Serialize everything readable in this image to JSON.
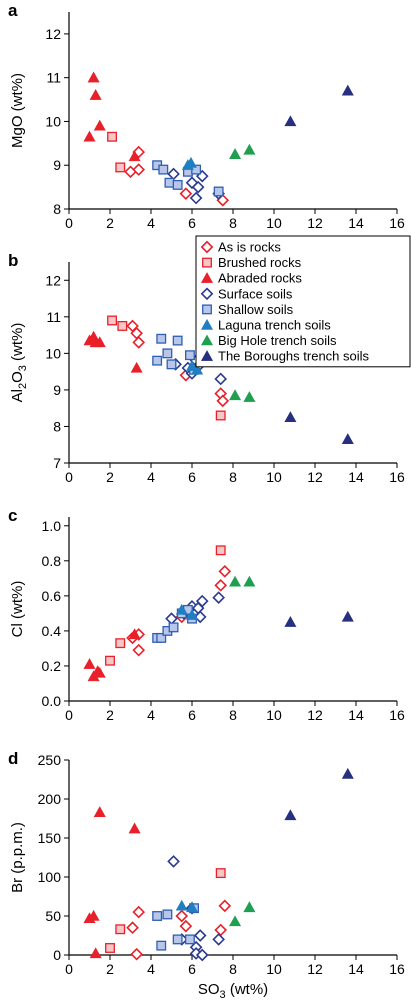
{
  "legend": {
    "placement": "between panels a and b, right side",
    "entries": [
      {
        "name": "As is rocks",
        "marker": "diamond-open",
        "color": "#e8202a"
      },
      {
        "name": "Brushed rocks",
        "marker": "square-light",
        "color": "#e8202a"
      },
      {
        "name": "Abraded rocks",
        "marker": "triangle-filled",
        "color": "#e8202a"
      },
      {
        "name": "Surface soils",
        "marker": "diamond-open",
        "color": "#2a3a8f"
      },
      {
        "name": "Shallow soils",
        "marker": "square-light",
        "color": "#2f5fb0"
      },
      {
        "name": "Laguna trench soils",
        "marker": "triangle-filled",
        "color": "#1f7fc2"
      },
      {
        "name": "Big Hole trench soils",
        "marker": "triangle-filled",
        "color": "#1ea050"
      },
      {
        "name": "The Boroughs trench soils",
        "marker": "triangle-filled",
        "color": "#27307f"
      }
    ]
  },
  "chart_data": [
    {
      "type": "scatter",
      "panel_label": "a",
      "xlabel": "",
      "ylabel": "MgO (wt%)",
      "xlim": [
        0,
        16
      ],
      "ylim": [
        8,
        12.5
      ],
      "xticks": [
        "0",
        "2",
        "4",
        "6",
        "8",
        "10",
        "12",
        "14",
        "16"
      ],
      "yticks": [
        {
          "value": 8,
          "label": "8"
        },
        {
          "value": 9,
          "label": "9"
        },
        {
          "value": 10,
          "label": "10"
        },
        {
          "value": 11,
          "label": "11"
        },
        {
          "value": 12,
          "label": "12"
        }
      ],
      "series": [
        {
          "name": "As is rocks",
          "points": [
            [
              3.4,
              9.3
            ],
            [
              3.0,
              8.85
            ],
            [
              3.4,
              8.9
            ],
            [
              5.7,
              8.35
            ],
            [
              7.5,
              8.2
            ]
          ]
        },
        {
          "name": "Brushed rocks",
          "points": [
            [
              2.1,
              9.65
            ],
            [
              2.5,
              8.95
            ]
          ]
        },
        {
          "name": "Abraded rocks",
          "points": [
            [
              1.2,
              11.0
            ],
            [
              1.3,
              10.6
            ],
            [
              1.5,
              9.9
            ],
            [
              1.0,
              9.65
            ],
            [
              3.2,
              9.2
            ]
          ]
        },
        {
          "name": "Surface soils",
          "points": [
            [
              5.1,
              8.8
            ],
            [
              6.0,
              8.6
            ],
            [
              6.5,
              8.75
            ],
            [
              6.3,
              8.5
            ],
            [
              6.2,
              8.25
            ],
            [
              7.3,
              8.35
            ]
          ]
        },
        {
          "name": "Shallow soils",
          "points": [
            [
              4.3,
              9.0
            ],
            [
              4.6,
              8.9
            ],
            [
              4.9,
              8.6
            ],
            [
              5.3,
              8.55
            ],
            [
              5.8,
              8.85
            ],
            [
              6.2,
              8.9
            ],
            [
              7.3,
              8.4
            ]
          ]
        },
        {
          "name": "Laguna trench soils",
          "points": [
            [
              5.8,
              9.0
            ],
            [
              5.95,
              9.05
            ]
          ]
        },
        {
          "name": "Big Hole trench soils",
          "points": [
            [
              8.1,
              9.25
            ],
            [
              8.8,
              9.35
            ]
          ]
        },
        {
          "name": "The Boroughs trench soils",
          "points": [
            [
              10.8,
              10.0
            ],
            [
              13.6,
              10.7
            ]
          ]
        }
      ]
    },
    {
      "type": "scatter",
      "panel_label": "b",
      "xlabel": "",
      "ylabel": "Al2O3 (wt%)",
      "xlim": [
        0,
        16
      ],
      "ylim": [
        7,
        12.5
      ],
      "xticks": [
        "0",
        "2",
        "4",
        "6",
        "8",
        "10",
        "12",
        "14",
        "16"
      ],
      "yticks": [
        {
          "value": 7,
          "label": "7"
        },
        {
          "value": 8,
          "label": "8"
        },
        {
          "value": 9,
          "label": "9"
        },
        {
          "value": 10,
          "label": "10"
        },
        {
          "value": 11,
          "label": "11"
        },
        {
          "value": 12,
          "label": "12"
        }
      ],
      "series": [
        {
          "name": "As is rocks",
          "points": [
            [
              3.1,
              10.75
            ],
            [
              3.3,
              10.55
            ],
            [
              3.4,
              10.3
            ],
            [
              5.7,
              9.4
            ],
            [
              7.4,
              8.9
            ],
            [
              7.5,
              8.7
            ]
          ]
        },
        {
          "name": "Brushed rocks",
          "points": [
            [
              2.1,
              10.9
            ],
            [
              2.6,
              10.75
            ],
            [
              7.4,
              8.3
            ]
          ]
        },
        {
          "name": "Abraded rocks",
          "points": [
            [
              1.0,
              10.35
            ],
            [
              1.2,
              10.45
            ],
            [
              1.3,
              10.3
            ],
            [
              1.5,
              10.3
            ],
            [
              3.3,
              9.6
            ]
          ]
        },
        {
          "name": "Surface soils",
          "points": [
            [
              5.2,
              9.7
            ],
            [
              5.8,
              9.6
            ],
            [
              6.2,
              9.8
            ],
            [
              6.4,
              9.7
            ],
            [
              6.0,
              9.45
            ],
            [
              7.4,
              9.3
            ]
          ]
        },
        {
          "name": "Shallow soils",
          "points": [
            [
              4.5,
              10.4
            ],
            [
              5.3,
              10.35
            ],
            [
              4.8,
              10.0
            ],
            [
              5.9,
              9.95
            ],
            [
              4.3,
              9.8
            ],
            [
              5.0,
              9.7
            ],
            [
              6.1,
              9.55
            ]
          ]
        },
        {
          "name": "Laguna trench soils",
          "points": [
            [
              6.0,
              9.65
            ],
            [
              6.25,
              9.55
            ]
          ]
        },
        {
          "name": "Big Hole trench soils",
          "points": [
            [
              8.1,
              8.85
            ],
            [
              8.8,
              8.8
            ]
          ]
        },
        {
          "name": "The Boroughs trench soils",
          "points": [
            [
              10.8,
              8.25
            ],
            [
              13.6,
              7.65
            ]
          ]
        }
      ]
    },
    {
      "type": "scatter",
      "panel_label": "c",
      "xlabel": "",
      "ylabel": "Cl (wt%)",
      "xlim": [
        0,
        16
      ],
      "ylim": [
        0,
        1.05
      ],
      "xticks": [
        "0",
        "2",
        "4",
        "6",
        "8",
        "10",
        "12",
        "14",
        "16"
      ],
      "yticks": [
        {
          "value": 0.0,
          "label": "0.0"
        },
        {
          "value": 0.2,
          "label": "0.2"
        },
        {
          "value": 0.4,
          "label": "0.4"
        },
        {
          "value": 0.6,
          "label": "0.6"
        },
        {
          "value": 0.8,
          "label": "0.8"
        },
        {
          "value": 1.0,
          "label": "1.0"
        }
      ],
      "series": [
        {
          "name": "As is rocks",
          "points": [
            [
              3.1,
              0.36
            ],
            [
              3.4,
              0.38
            ],
            [
              3.4,
              0.29
            ],
            [
              5.5,
              0.48
            ],
            [
              7.4,
              0.66
            ],
            [
              7.6,
              0.74
            ]
          ]
        },
        {
          "name": "Brushed rocks",
          "points": [
            [
              2.5,
              0.33
            ],
            [
              2.0,
              0.23
            ],
            [
              7.4,
              0.86
            ]
          ]
        },
        {
          "name": "Abraded rocks",
          "points": [
            [
              1.0,
              0.21
            ],
            [
              1.2,
              0.14
            ],
            [
              1.4,
              0.17
            ],
            [
              1.5,
              0.16
            ],
            [
              3.2,
              0.38
            ]
          ]
        },
        {
          "name": "Surface soils",
          "points": [
            [
              5.0,
              0.47
            ],
            [
              5.6,
              0.5
            ],
            [
              6.0,
              0.54
            ],
            [
              6.3,
              0.53
            ],
            [
              6.5,
              0.57
            ],
            [
              6.4,
              0.48
            ],
            [
              7.3,
              0.59
            ]
          ]
        },
        {
          "name": "Shallow soils",
          "points": [
            [
              4.3,
              0.36
            ],
            [
              4.5,
              0.36
            ],
            [
              4.8,
              0.4
            ],
            [
              5.1,
              0.42
            ],
            [
              5.5,
              0.5
            ],
            [
              5.8,
              0.52
            ],
            [
              6.0,
              0.47
            ]
          ]
        },
        {
          "name": "Laguna trench soils",
          "points": [
            [
              5.5,
              0.52
            ],
            [
              6.0,
              0.49
            ]
          ]
        },
        {
          "name": "Big Hole trench soils",
          "points": [
            [
              8.1,
              0.68
            ],
            [
              8.8,
              0.68
            ]
          ]
        },
        {
          "name": "The Boroughs trench soils",
          "points": [
            [
              10.8,
              0.45
            ],
            [
              13.6,
              0.48
            ]
          ]
        }
      ]
    },
    {
      "type": "scatter",
      "panel_label": "d",
      "xlabel": "SO3 (wt%)",
      "ylabel": "Br (p.p.m.)",
      "xlim": [
        0,
        16
      ],
      "ylim": [
        0,
        250
      ],
      "xticks": [
        "0",
        "2",
        "4",
        "6",
        "8",
        "10",
        "12",
        "14",
        "16"
      ],
      "yticks": [
        {
          "value": 0,
          "label": "0"
        },
        {
          "value": 50,
          "label": "50"
        },
        {
          "value": 100,
          "label": "100"
        },
        {
          "value": 150,
          "label": "150"
        },
        {
          "value": 200,
          "label": "200"
        },
        {
          "value": 250,
          "label": "250"
        }
      ],
      "series": [
        {
          "name": "As is rocks",
          "points": [
            [
              3.4,
              55
            ],
            [
              3.1,
              35
            ],
            [
              3.3,
              1
            ],
            [
              5.5,
              50
            ],
            [
              5.7,
              37
            ],
            [
              7.4,
              32
            ],
            [
              7.6,
              63
            ]
          ]
        },
        {
          "name": "Brushed rocks",
          "points": [
            [
              2.5,
              33
            ],
            [
              2.0,
              9
            ],
            [
              7.4,
              105
            ]
          ]
        },
        {
          "name": "Abraded rocks",
          "points": [
            [
              1.0,
              47
            ],
            [
              1.2,
              50
            ],
            [
              1.3,
              2
            ],
            [
              1.5,
              183
            ],
            [
              3.2,
              162
            ]
          ]
        },
        {
          "name": "Surface soils",
          "points": [
            [
              5.1,
              120
            ],
            [
              5.5,
              20
            ],
            [
              6.0,
              60
            ],
            [
              6.2,
              10
            ],
            [
              6.4,
              25
            ],
            [
              6.2,
              2
            ],
            [
              6.5,
              0
            ],
            [
              7.3,
              20
            ]
          ]
        },
        {
          "name": "Shallow soils",
          "points": [
            [
              4.3,
              50
            ],
            [
              4.8,
              52
            ],
            [
              5.3,
              20
            ],
            [
              5.9,
              20
            ],
            [
              6.1,
              60
            ],
            [
              4.5,
              12
            ]
          ]
        },
        {
          "name": "Laguna trench soils",
          "points": [
            [
              5.5,
              63
            ],
            [
              6.0,
              61
            ]
          ]
        },
        {
          "name": "Big Hole trench soils",
          "points": [
            [
              8.1,
              43
            ],
            [
              8.8,
              61
            ]
          ]
        },
        {
          "name": "The Boroughs trench soils",
          "points": [
            [
              10.8,
              179
            ],
            [
              13.6,
              232
            ]
          ]
        }
      ]
    }
  ]
}
